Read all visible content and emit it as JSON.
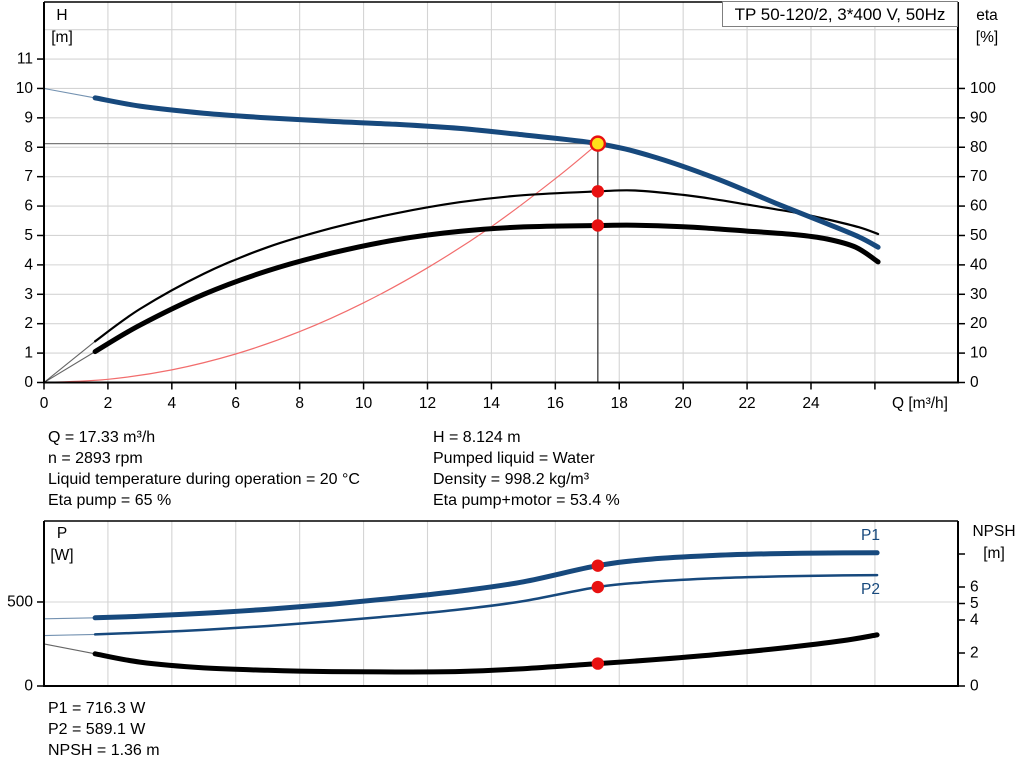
{
  "title_box": {
    "label": "TP 50-120/2, 3*400 V, 50Hz"
  },
  "annotations": {
    "operating_left": [
      "Q = 17.33 m³/h",
      "n = 2893 rpm",
      "Liquid temperature during operation = 20 °C",
      "Eta pump = 65 %"
    ],
    "operating_right": [
      "H = 8.124 m",
      "Pumped liquid = Water",
      "Density = 998.2 kg/m³",
      "Eta pump+motor = 53.4 %"
    ],
    "power_block": [
      "P1 = 716.3 W",
      "P2 = 589.1 W",
      "NPSH = 1.36 m"
    ]
  },
  "colors": {
    "curve_blue": "#17497d",
    "curve_black": "#000000",
    "system_red": "#f26d6d",
    "marker_red": "#e81111",
    "marker_yellow": "#ffe11a",
    "grid": "#d4d4d4",
    "crosshair_v": "#3a3a3a",
    "crosshair_h": "#7a7a7a",
    "spine": "#000000"
  },
  "chart_data": [
    {
      "type": "line",
      "title": "TP 50-120/2, 3*400 V, 50Hz",
      "x_axis": {
        "label": "Q [m³/h]",
        "min": 0,
        "max": 28.6,
        "ticks": [
          0,
          2,
          4,
          6,
          8,
          10,
          12,
          14,
          16,
          18,
          20,
          22,
          24,
          26
        ],
        "tick_labels": [
          0,
          2,
          4,
          6,
          8,
          10,
          12,
          14,
          16,
          18,
          20,
          22,
          24
        ],
        "grid": [
          2,
          4,
          6,
          8,
          10,
          12,
          14,
          16,
          18,
          20,
          22,
          24,
          26
        ]
      },
      "y_left": {
        "symbol": "H",
        "unit": "[m]",
        "min": 0,
        "max": 12.94,
        "ticks": [
          0,
          1,
          2,
          3,
          4,
          5,
          6,
          7,
          8,
          9,
          10,
          11
        ],
        "tick_labels": [
          0,
          1,
          2,
          3,
          4,
          5,
          6,
          7,
          8,
          9,
          10,
          11
        ],
        "grid": [
          1,
          2,
          3,
          4,
          5,
          6,
          7,
          8,
          9,
          10,
          11,
          12
        ]
      },
      "y_right": {
        "symbol": "eta",
        "unit": "[%]",
        "min": 0,
        "max": 129.4,
        "ticks": [
          0,
          10,
          20,
          30,
          40,
          50,
          60,
          70,
          80,
          90,
          100
        ],
        "tick_labels": [
          0,
          10,
          20,
          30,
          40,
          50,
          60,
          70,
          80,
          90,
          100
        ]
      },
      "series": [
        {
          "name": "system-curve",
          "axis": "left",
          "color": "red",
          "width": 1.2,
          "points": [
            [
              0,
              0
            ],
            [
              2,
              0.11
            ],
            [
              4,
              0.43
            ],
            [
              6,
              0.97
            ],
            [
              8,
              1.73
            ],
            [
              10,
              2.71
            ],
            [
              12,
              3.9
            ],
            [
              14,
              5.3
            ],
            [
              16,
              6.93
            ],
            [
              17.33,
              8.124
            ]
          ]
        },
        {
          "name": "eta-pump",
          "axis": "right",
          "color": "black",
          "width": 2.2,
          "lead_in_until": 1.6,
          "points": [
            [
              0,
              0
            ],
            [
              1.6,
              14
            ],
            [
              3,
              25
            ],
            [
              5,
              37
            ],
            [
              7,
              46
            ],
            [
              9,
              52.5
            ],
            [
              11,
              57.5
            ],
            [
              13,
              61.3
            ],
            [
              15,
              63.7
            ],
            [
              17.33,
              65
            ],
            [
              18.5,
              65.3
            ],
            [
              20,
              63.8
            ],
            [
              21,
              62.3
            ],
            [
              22,
              60.5
            ],
            [
              23.5,
              57.8
            ],
            [
              24.5,
              55.5
            ],
            [
              25.5,
              52.8
            ],
            [
              26.1,
              50.5
            ]
          ]
        },
        {
          "name": "eta-pump-motor",
          "axis": "right",
          "color": "black",
          "width": 5,
          "lead_in_until": 1.6,
          "points": [
            [
              0,
              0
            ],
            [
              1.6,
              10.5
            ],
            [
              3,
              19.5
            ],
            [
              5,
              30
            ],
            [
              7,
              38
            ],
            [
              9,
              44
            ],
            [
              11,
              48.5
            ],
            [
              13,
              51.4
            ],
            [
              15,
              52.9
            ],
            [
              17.33,
              53.4
            ],
            [
              18.5,
              53.5
            ],
            [
              20,
              53
            ],
            [
              21,
              52.3
            ],
            [
              22,
              51.5
            ],
            [
              23.5,
              50.3
            ],
            [
              24.5,
              48.8
            ],
            [
              25.4,
              46
            ],
            [
              26.1,
              41
            ]
          ]
        },
        {
          "name": "qh-curve",
          "axis": "left",
          "color": "blue",
          "width": 5,
          "lead_in_until": 1.6,
          "points": [
            [
              0,
              10.0
            ],
            [
              1.6,
              9.68
            ],
            [
              3,
              9.4
            ],
            [
              5,
              9.16
            ],
            [
              7,
              9.0
            ],
            [
              9,
              8.88
            ],
            [
              11,
              8.78
            ],
            [
              13,
              8.64
            ],
            [
              15,
              8.42
            ],
            [
              17.33,
              8.124
            ],
            [
              19,
              7.7
            ],
            [
              21,
              6.95
            ],
            [
              23,
              6.05
            ],
            [
              24.5,
              5.4
            ],
            [
              25.5,
              4.95
            ],
            [
              26.1,
              4.6
            ]
          ]
        }
      ],
      "markers": [
        {
          "q": 17.33,
          "v": 65,
          "axis": "right",
          "style": "dot"
        },
        {
          "q": 17.33,
          "v": 53.4,
          "axis": "right",
          "style": "dot"
        },
        {
          "q": 17.33,
          "v": 8.124,
          "axis": "left",
          "style": "target"
        }
      ],
      "crosshair": {
        "q": 17.33,
        "v": 8.124
      }
    },
    {
      "type": "line",
      "x_axis": {
        "label": "",
        "min": 0,
        "max": 28.6,
        "ticks": [],
        "tick_labels": [],
        "grid": [
          2,
          4,
          6,
          8,
          10,
          12,
          14,
          16,
          18,
          20,
          22,
          24,
          26
        ]
      },
      "y_left": {
        "symbol": "P",
        "unit": "[W]",
        "min": 0,
        "max": 982,
        "ticks": [
          0,
          500
        ],
        "tick_labels": [
          0,
          500
        ],
        "grid": [
          500
        ]
      },
      "y_right": {
        "symbol": "NPSH",
        "unit": "[m]",
        "min": 0,
        "max": 10,
        "ticks": [
          0,
          2,
          4,
          5,
          6,
          8
        ],
        "tick_labels": [
          0,
          2,
          4,
          5,
          6
        ]
      },
      "series": [
        {
          "name": "npsh-curve",
          "axis": "right",
          "color": "black",
          "width": 5,
          "lead_in_until": 1.6,
          "points": [
            [
              0,
              2.55
            ],
            [
              1.6,
              1.95
            ],
            [
              3,
              1.45
            ],
            [
              5,
              1.1
            ],
            [
              7,
              0.95
            ],
            [
              9,
              0.87
            ],
            [
              11,
              0.85
            ],
            [
              13,
              0.88
            ],
            [
              15,
              1.05
            ],
            [
              17.33,
              1.36
            ],
            [
              19,
              1.58
            ],
            [
              21,
              1.9
            ],
            [
              23,
              2.28
            ],
            [
              25,
              2.75
            ],
            [
              26.07,
              3.1
            ]
          ]
        },
        {
          "name": "p2-curve",
          "label": "P2",
          "axis": "left",
          "color": "blue",
          "width": 2.5,
          "lead_in_until": 1.6,
          "points": [
            [
              0,
              300
            ],
            [
              1.6,
              307
            ],
            [
              3,
              317
            ],
            [
              5,
              334
            ],
            [
              7,
              357
            ],
            [
              9,
              385
            ],
            [
              11,
              418
            ],
            [
              13,
              455
            ],
            [
              15,
              505
            ],
            [
              17.33,
              589.1
            ],
            [
              19,
              620
            ],
            [
              21,
              641
            ],
            [
              23,
              652
            ],
            [
              25,
              658
            ],
            [
              26.07,
              660
            ]
          ]
        },
        {
          "name": "p1-curve",
          "label": "P1",
          "axis": "left",
          "color": "blue",
          "width": 5,
          "lead_in_until": 1.6,
          "points": [
            [
              0,
              400
            ],
            [
              1.6,
              406
            ],
            [
              3,
              415
            ],
            [
              5,
              433
            ],
            [
              7,
              457
            ],
            [
              9,
              487
            ],
            [
              11,
              523
            ],
            [
              13,
              565
            ],
            [
              15,
              620
            ],
            [
              17.33,
              716.3
            ],
            [
              19,
              755
            ],
            [
              21,
              777
            ],
            [
              23,
              788
            ],
            [
              25,
              792
            ],
            [
              26.07,
              793
            ]
          ]
        }
      ],
      "markers": [
        {
          "q": 17.33,
          "v": 716.3,
          "axis": "left",
          "style": "dot"
        },
        {
          "q": 17.33,
          "v": 589.1,
          "axis": "left",
          "style": "dot"
        },
        {
          "q": 17.33,
          "v": 1.36,
          "axis": "right",
          "style": "dot"
        }
      ]
    }
  ]
}
